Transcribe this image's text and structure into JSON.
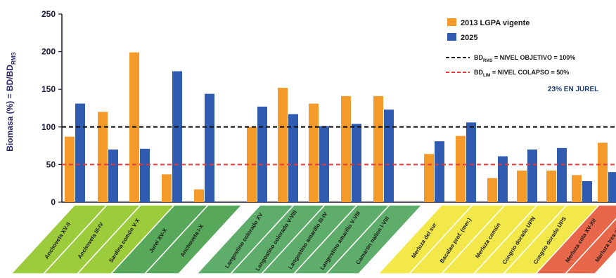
{
  "chart_data": {
    "type": "bar",
    "ylabel": "Biomasa (%) = BD/BD",
    "ylabel_sub": "RMS",
    "ylim": [
      0,
      250
    ],
    "yticks": [
      "0",
      "50",
      "100",
      "150",
      "200",
      "250"
    ],
    "categories": [
      "Anchoveta XV-II",
      "Anchoveta III-IV",
      "Sardina común V-X",
      "Jurel XV-X",
      "Anchoveta I-X",
      "Langostino colorado XV",
      "Langostino colorado V-VIII",
      "Langostino amarillo III-IV",
      "Langostino amarillo V-VIII",
      "Camarón nailon I-VIII",
      "Merluza del sur",
      "Bacalao prof. (mer.)",
      "Merluza común",
      "Congrio dorado UPN",
      "Congrio dorado UPS",
      "Merluza cola XV-XII",
      "Merluza tres aletas"
    ],
    "groups": [
      {
        "color": "#9ccc3c",
        "indices": [
          0,
          1,
          2
        ]
      },
      {
        "color": "#57a85a",
        "indices": [
          3,
          4
        ]
      },
      {
        "color": "#5fad6a",
        "indices": [
          5,
          6,
          7,
          8,
          9
        ]
      },
      {
        "color": "#f2e84a",
        "indices": [
          10,
          11,
          12,
          13,
          14
        ]
      },
      {
        "color": "#e8674a",
        "indices": [
          15,
          16
        ]
      }
    ],
    "series": [
      {
        "name": "2013   LGPA vigente",
        "color": "#f39a2a",
        "values": [
          87,
          120,
          199,
          37,
          17,
          100,
          152,
          131,
          141,
          141,
          64,
          88,
          32,
          42,
          42,
          36,
          79
        ]
      },
      {
        "name": "2025",
        "color": "#2f5bb0",
        "values": [
          131,
          70,
          71,
          174,
          144,
          127,
          117,
          101,
          104,
          123,
          81,
          106,
          61,
          70,
          72,
          28,
          40
        ]
      }
    ],
    "reference_lines": [
      {
        "value": 100,
        "color": "#111111",
        "label": "BD",
        "sub": "RMS",
        "suffix": " = NIVEL OBJETIVO = 100%"
      },
      {
        "value": 50,
        "color": "#e23a3a",
        "label": "BD",
        "sub": "LIM",
        "suffix": " = NIVEL COLAPSO = 50%"
      }
    ],
    "annotation": "23% EN JUREL",
    "grid": false,
    "legend_position": "top-right"
  }
}
